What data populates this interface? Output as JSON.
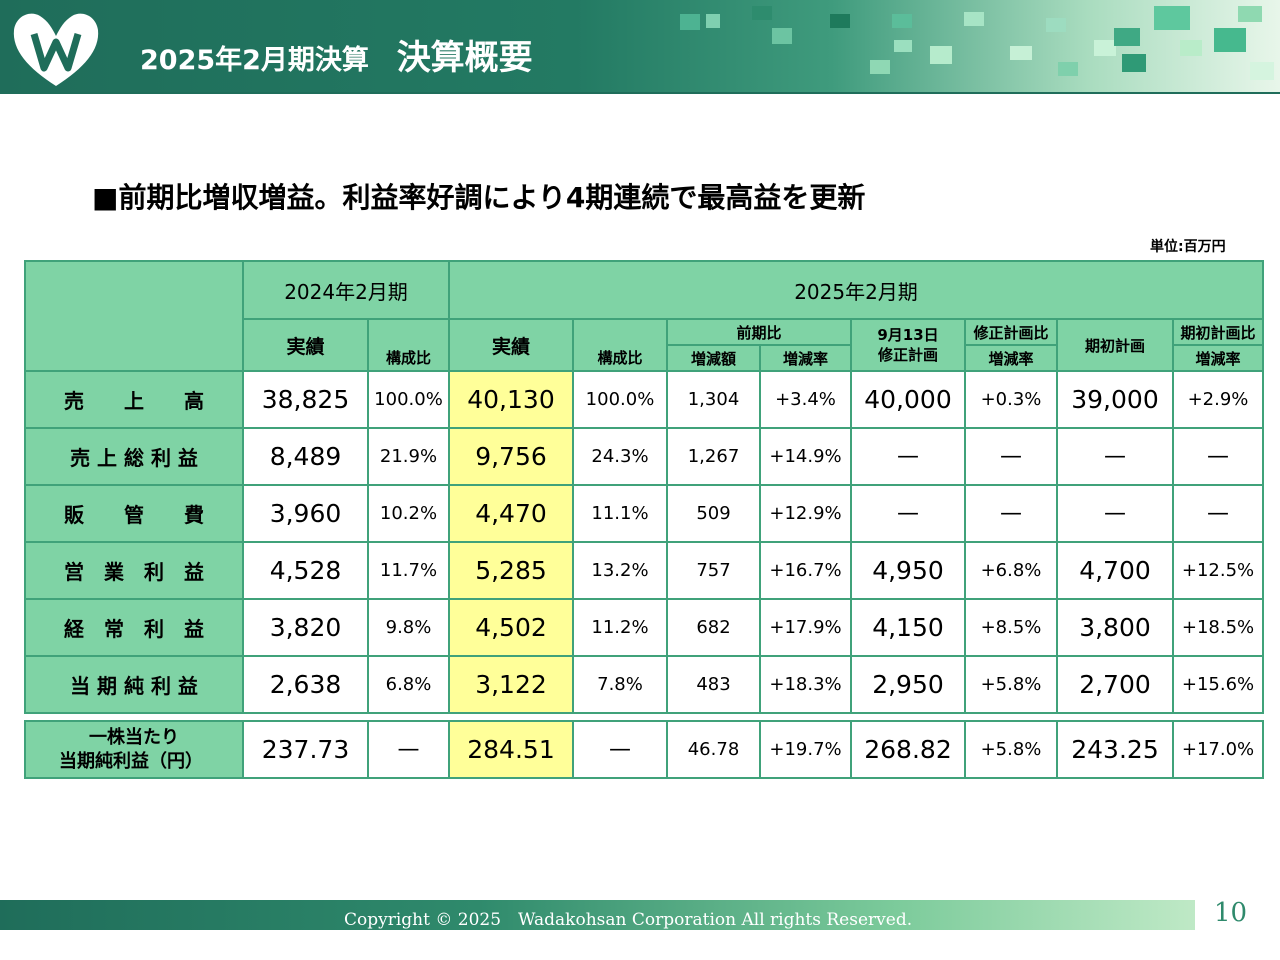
{
  "header": {
    "title_period": "2025年2月期決算",
    "title_main": "決算概要"
  },
  "headline": "■前期比増収増益。利益率好調により4期連続で最高益を更新",
  "unit": "単位:百万円",
  "table": {
    "col_headers": {
      "fy2024": "2024年2月期",
      "fy2025": "2025年2月期",
      "actual_2024": "実績",
      "ratio_2024": "構成比",
      "actual_2025": "実績",
      "ratio_2025": "構成比",
      "yoy": "前期比",
      "yoy_diff": "増減額",
      "yoy_rate": "増減率",
      "revised_plan": "9月13日\n修正計画",
      "vs_revised": "修正計画比",
      "vs_revised_rate": "増減率",
      "initial_plan": "期初計画",
      "vs_initial": "期初計画比",
      "vs_initial_rate": "増減率"
    },
    "rows": [
      {
        "label": "売　　上　　高",
        "a24": "38,825",
        "r24": "100.0%",
        "a25": "40,130",
        "r25": "100.0%",
        "diff": "1,304",
        "rate": "+3.4%",
        "rev": "40,000",
        "rev_rate": "+0.3%",
        "init": "39,000",
        "init_rate": "+2.9%"
      },
      {
        "label": "売 上 総 利 益",
        "a24": "8,489",
        "r24": "21.9%",
        "a25": "9,756",
        "r25": "24.3%",
        "diff": "1,267",
        "rate": "+14.9%",
        "rev": "—",
        "rev_rate": "—",
        "init": "—",
        "init_rate": "—"
      },
      {
        "label": "販　　管　　費",
        "a24": "3,960",
        "r24": "10.2%",
        "a25": "4,470",
        "r25": "11.1%",
        "diff": "509",
        "rate": "+12.9%",
        "rev": "—",
        "rev_rate": "—",
        "init": "—",
        "init_rate": "—"
      },
      {
        "label": "営　業　利　益",
        "a24": "4,528",
        "r24": "11.7%",
        "a25": "5,285",
        "r25": "13.2%",
        "diff": "757",
        "rate": "+16.7%",
        "rev": "4,950",
        "rev_rate": "+6.8%",
        "init": "4,700",
        "init_rate": "+12.5%"
      },
      {
        "label": "経　常　利　益",
        "a24": "3,820",
        "r24": "9.8%",
        "a25": "4,502",
        "r25": "11.2%",
        "diff": "682",
        "rate": "+17.9%",
        "rev": "4,150",
        "rev_rate": "+8.5%",
        "init": "3,800",
        "init_rate": "+18.5%"
      },
      {
        "label": "当 期 純 利 益",
        "a24": "2,638",
        "r24": "6.8%",
        "a25": "3,122",
        "r25": "7.8%",
        "diff": "483",
        "rate": "+18.3%",
        "rev": "2,950",
        "rev_rate": "+5.8%",
        "init": "2,700",
        "init_rate": "+15.6%"
      }
    ],
    "eps": {
      "label_line1": "一株当たり",
      "label_line2": "当期純利益（円）",
      "a24": "237.73",
      "r24": "—",
      "a25": "284.51",
      "r25": "—",
      "diff": "46.78",
      "rate": "+19.7%",
      "rev": "268.82",
      "rev_rate": "+5.8%",
      "init": "243.25",
      "init_rate": "+17.0%"
    }
  },
  "footer": {
    "copyright": "Copyright © 2025　Wadakohsan Corporation All rights Reserved.",
    "page": "10"
  },
  "colors": {
    "brand_dark_green": "#1f6d5a",
    "header_cell_green": "#7fd3a5",
    "highlight_yellow": "#ffff99"
  }
}
